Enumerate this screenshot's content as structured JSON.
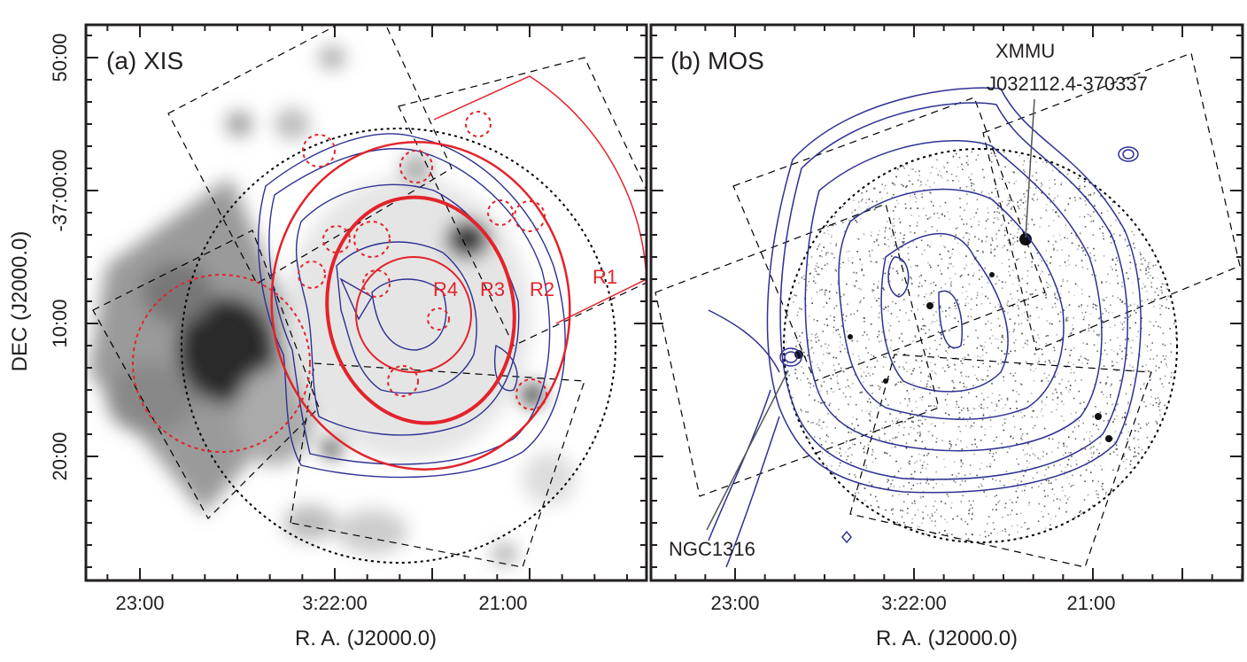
{
  "y_label": "DEC (J2000.0)",
  "y_ticks": [
    "50:00",
    "-37:00:00",
    "10:00",
    "20:00"
  ],
  "panels": [
    {
      "label": "(a) XIS",
      "x_ticks": [
        "23:00",
        "3:22:00",
        "21:00"
      ],
      "x_label": "R. A. (J2000.0)",
      "region_labels": [
        "R1",
        "R2",
        "R3",
        "R4"
      ]
    },
    {
      "label": "(b) MOS",
      "x_ticks": [
        "23:00",
        "3:22:00",
        "21:00"
      ],
      "x_label": "R. A. (J2000.0)",
      "annotations": [
        "XMMU",
        "J032112.4-370337",
        "NGC1316"
      ]
    }
  ]
}
